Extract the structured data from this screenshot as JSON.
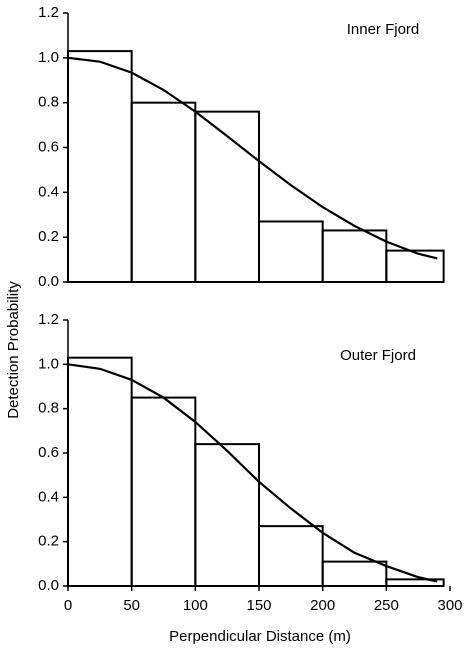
{
  "chart_data": [
    {
      "type": "histogram",
      "annotation": "Inner Fjord",
      "ylabel": "Detection Probability",
      "bins": [
        0,
        50,
        100,
        150,
        200,
        250,
        295
      ],
      "counts": [
        1.03,
        0.8,
        0.76,
        0.27,
        0.23,
        0.14
      ],
      "curve": {
        "x": [
          0,
          25,
          50,
          75,
          100,
          125,
          150,
          175,
          200,
          225,
          250,
          275,
          290
        ],
        "values": [
          1.0,
          0.983,
          0.934,
          0.857,
          0.76,
          0.651,
          0.539,
          0.432,
          0.334,
          0.25,
          0.18,
          0.126,
          0.105
        ]
      },
      "color": "#000000",
      "xlim": [
        0,
        300
      ],
      "ylim": [
        0,
        1.2
      ],
      "yticks": [
        {
          "value": 0,
          "label": "0.0"
        },
        0.2,
        0.4,
        0.6,
        0.8,
        {
          "value": 1,
          "label": "1.0"
        },
        1.2
      ]
    },
    {
      "type": "histogram",
      "annotation": "Outer Fjord",
      "xlabel": "Perpendicular Distance (m)",
      "bins": [
        0,
        50,
        100,
        150,
        200,
        250,
        295
      ],
      "counts": [
        1.03,
        0.85,
        0.64,
        0.27,
        0.11,
        0.03
      ],
      "curve": {
        "x": [
          0,
          25,
          50,
          75,
          100,
          125,
          150,
          175,
          200,
          225,
          250,
          275,
          290
        ],
        "values": [
          1.0,
          0.98,
          0.93,
          0.85,
          0.74,
          0.61,
          0.47,
          0.35,
          0.24,
          0.15,
          0.09,
          0.04,
          0.02
        ]
      },
      "color": "#000000",
      "xlim": [
        0,
        300
      ],
      "ylim": [
        0,
        1.2
      ],
      "xticks": [
        0,
        50,
        100,
        150,
        200,
        250,
        300
      ],
      "yticks": [
        {
          "value": 0,
          "label": "0.0"
        },
        0.2,
        0.4,
        0.6,
        0.8,
        {
          "value": 1,
          "label": "1.0"
        },
        1.2
      ]
    }
  ]
}
